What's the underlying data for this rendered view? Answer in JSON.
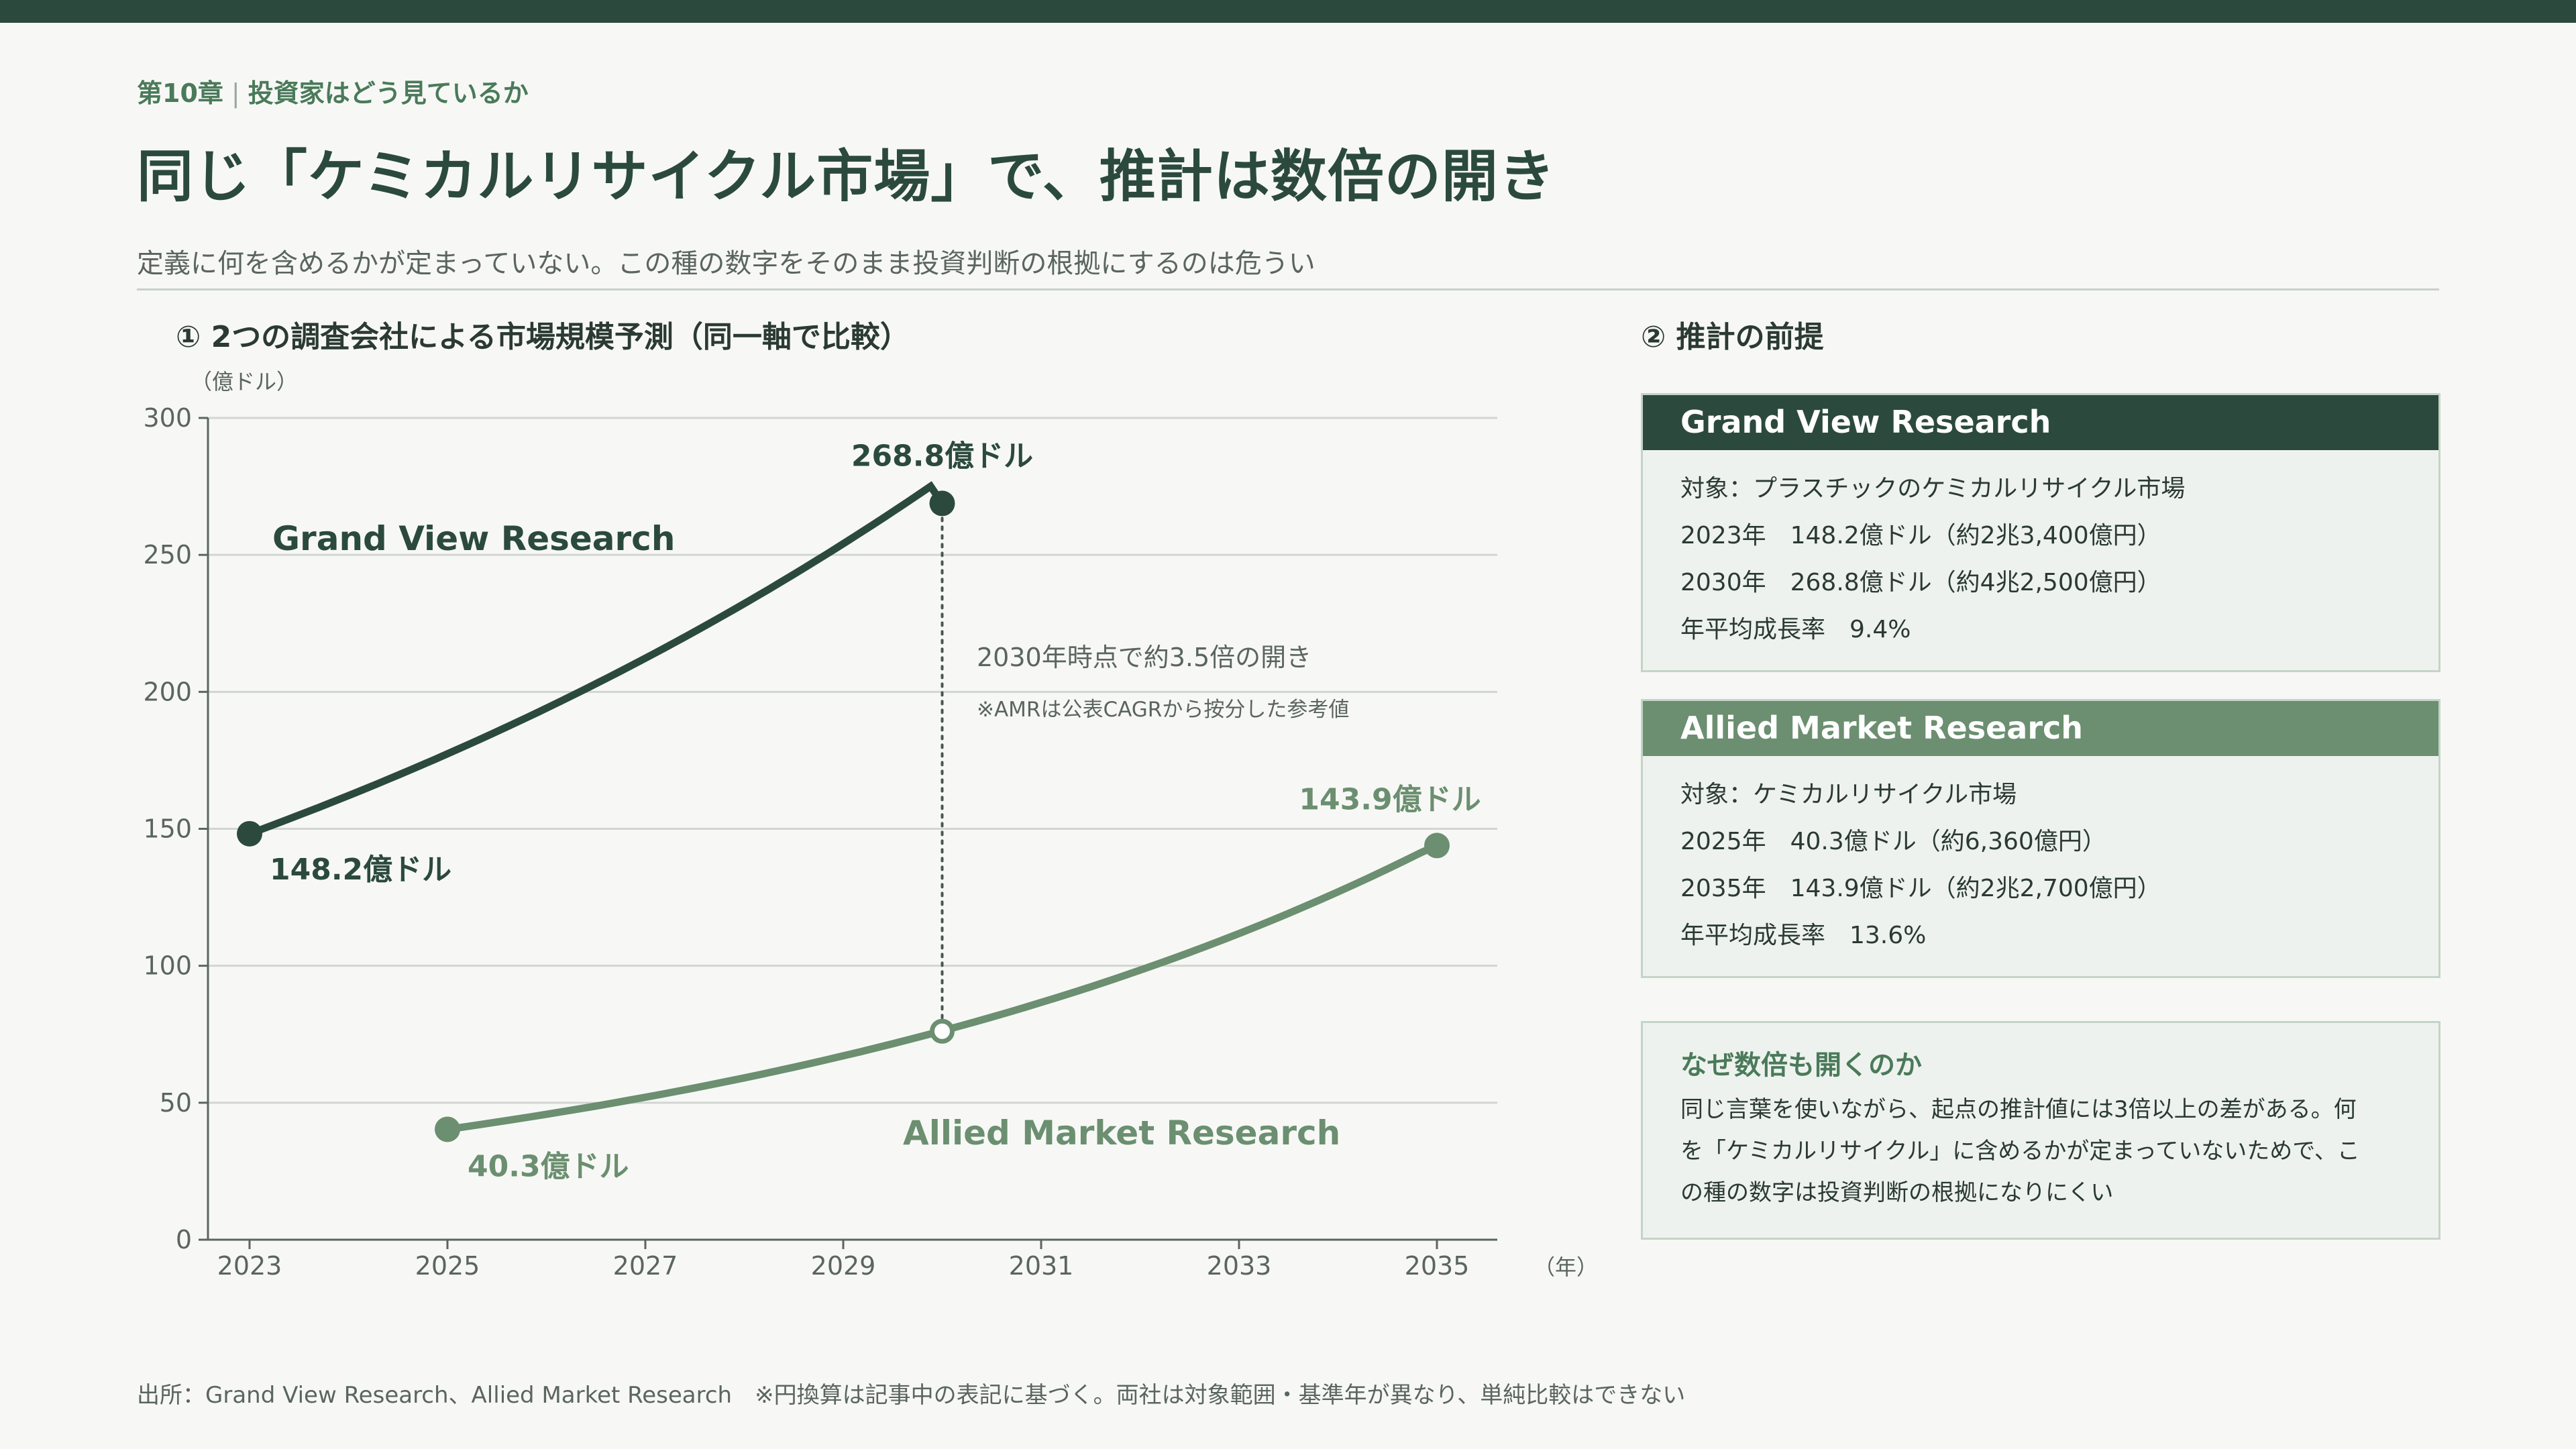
{
  "header": {
    "chapter": "第10章",
    "chapter_topic": "投資家はどう見ているか",
    "title": "同じ「ケミカルリサイクル市場」で、推計は数倍の開き",
    "subtitle": "定義に何を含めるかが定まっていない。この種の数字をそのまま投資判断の根拠にするのは危うい"
  },
  "section1": {
    "title": "①  2つの調査会社による市場規模予測（同一軸で比較）"
  },
  "section2": {
    "title": "②  推計の前提"
  },
  "chart_data": {
    "type": "line",
    "ylabel": "（億ドル）",
    "xlabel": "（年）",
    "ylim": [
      0,
      300
    ],
    "yticks": [
      0,
      50,
      100,
      150,
      200,
      250,
      300
    ],
    "xlim": [
      2023,
      2035
    ],
    "xticks": [
      2023,
      2025,
      2027,
      2029,
      2031,
      2033,
      2035
    ],
    "grid": true,
    "series": [
      {
        "name": "Grand View Research",
        "color": "#2b4a3d",
        "x": [
          2023,
          2030
        ],
        "y": [
          148.2,
          268.8
        ],
        "growth_rate": 0.094,
        "start_label": "148.2億ドル",
        "end_label": "268.8億ドル"
      },
      {
        "name": "Allied Market Research",
        "color": "#6b8f70",
        "x": [
          2025,
          2035
        ],
        "y": [
          40.3,
          143.9
        ],
        "growth_rate": 0.136,
        "start_label": "40.3億ドル",
        "end_label": "143.9億ドル"
      }
    ],
    "marker": {
      "x": 2030,
      "y": 76.1,
      "hollow": true
    },
    "annotations": [
      "2030年時点で約3.5倍の開き",
      "※AMRは公表CAGRから按分した参考値"
    ]
  },
  "cards": [
    {
      "title": "Grand View Research",
      "lines": [
        "対象：プラスチックのケミカルリサイクル市場",
        "2023年　148.2億ドル（約2兆3,400億円）",
        "2030年　268.8億ドル（約4兆2,500億円）",
        "年平均成長率　9.4%"
      ]
    },
    {
      "title": "Allied Market Research",
      "lines": [
        "対象：ケミカルリサイクル市場",
        "2025年　40.3億ドル（約6,360億円）",
        "2035年　143.9億ドル（約2兆2,700億円）",
        "年平均成長率　13.6%"
      ]
    }
  ],
  "note": {
    "title": "なぜ数倍も開くのか",
    "lines": [
      "同じ言葉を使いながら、起点の推計値には3倍以上の差がある。何",
      "を「ケミカルリサイクル」に含めるかが定まっていないためで、こ",
      "の種の数字は投資判断の根拠になりにくい"
    ]
  },
  "footer": {
    "source": "出所：Grand View Research、Allied Market Research　※円換算は記事中の表記に基づく。両社は対象範囲・基準年が異なり、単純比較はできない"
  }
}
